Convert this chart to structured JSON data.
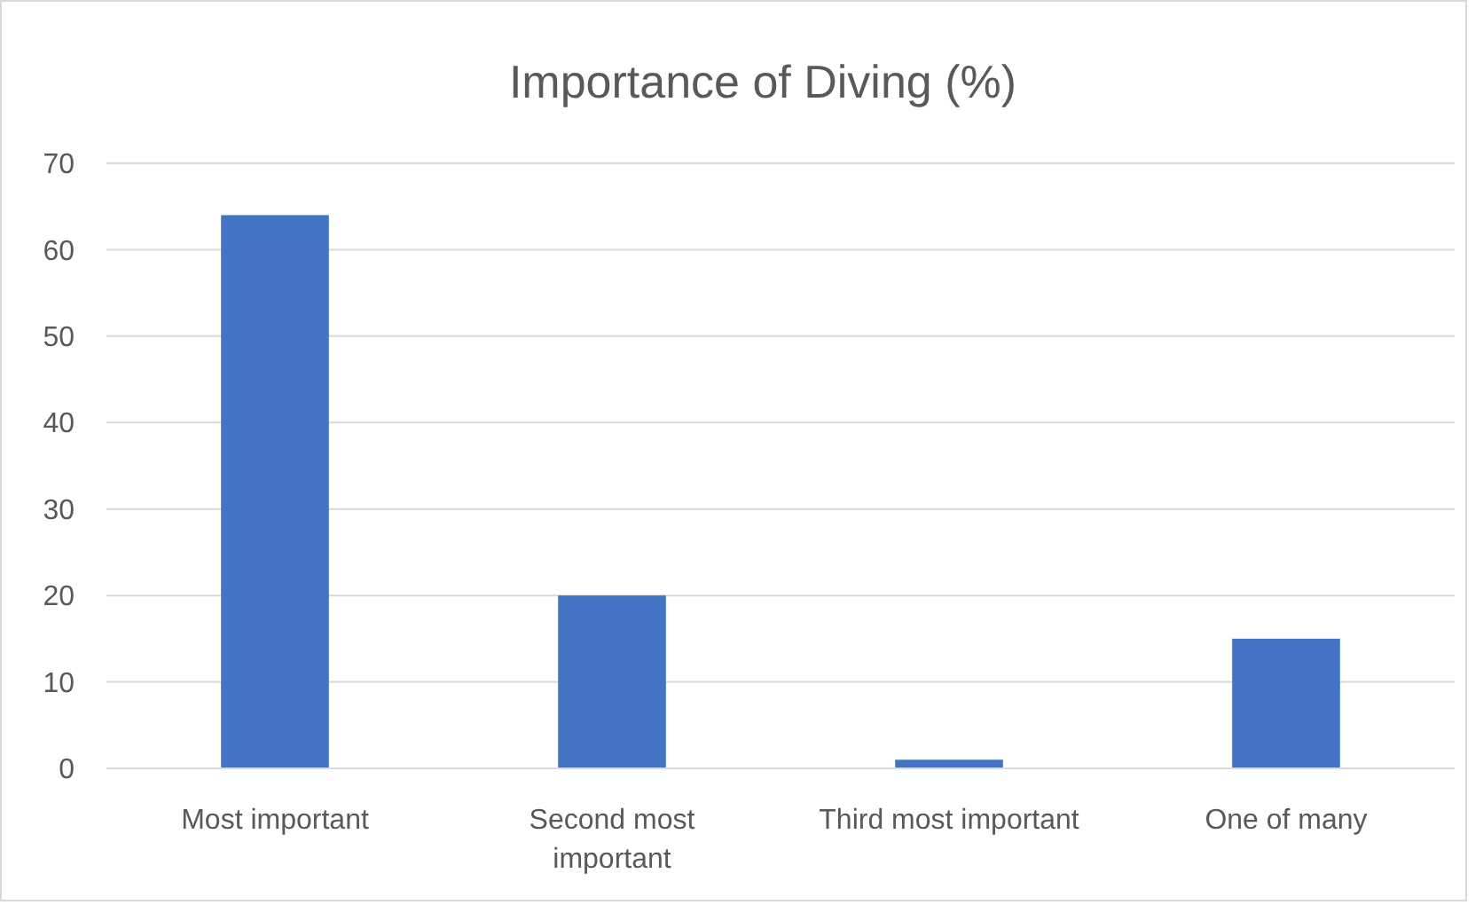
{
  "chart_data": {
    "type": "bar",
    "title": "Importance of Diving (%)",
    "categories": [
      "Most important",
      "Second most important",
      "Third most important",
      "One of many"
    ],
    "values": [
      64,
      20,
      1,
      15
    ],
    "color": "#4472c4",
    "ylim": [
      0,
      70
    ],
    "yticks": [
      0,
      10,
      20,
      30,
      40,
      50,
      60,
      70
    ],
    "grid": "y"
  }
}
